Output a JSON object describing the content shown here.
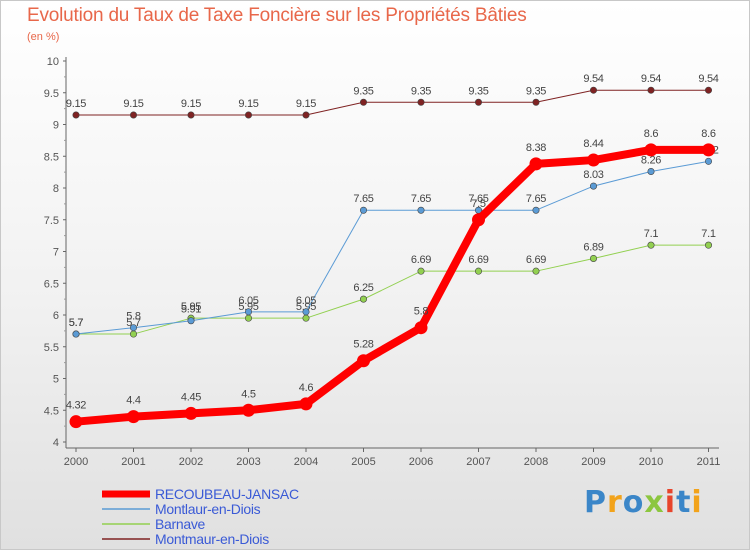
{
  "title": "Evolution du Taux de Taxe Foncière sur les Propriétés Bâties",
  "unit_label": "(en %)",
  "logo": {
    "text": "Proxiti",
    "letter_colors": [
      "#3b86c8",
      "#f2a31b",
      "#3b86c8",
      "#8cc63f",
      "#e8452c",
      "#3b86c8",
      "#f2a31b"
    ]
  },
  "chart_data": {
    "type": "line",
    "x": [
      "2000",
      "2001",
      "2002",
      "2003",
      "2004",
      "2005",
      "2006",
      "2007",
      "2008",
      "2009",
      "2010",
      "2011"
    ],
    "ylim": [
      4,
      10
    ],
    "yticks": [
      "4",
      "4.5",
      "5",
      "5.5",
      "6",
      "6.5",
      "7",
      "7.5",
      "8",
      "8.5",
      "9",
      "9.5",
      "10"
    ],
    "grid": false,
    "legend_position": "bottom-left",
    "series": [
      {
        "name": "Montmaur-en-Diois",
        "color": "#7f2323",
        "width": 1,
        "values": [
          9.15,
          9.15,
          9.15,
          9.15,
          9.15,
          9.35,
          9.35,
          9.35,
          9.35,
          9.54,
          9.54,
          9.54
        ],
        "labels": [
          "9.15",
          "9.15",
          "9.15",
          "9.15",
          "9.15",
          "9.35",
          "9.35",
          "9.35",
          "9.35",
          "9.54",
          "9.54",
          "9.54"
        ]
      },
      {
        "name": "Barnave",
        "color": "#92d050",
        "width": 1,
        "values": [
          5.7,
          5.7,
          5.95,
          5.95,
          5.95,
          6.25,
          6.69,
          6.69,
          6.69,
          6.89,
          7.1,
          7.1
        ],
        "labels": [
          "5.7",
          "5.7",
          "5.95",
          "5.95",
          "5.95",
          "6.25",
          "6.69",
          "6.69",
          "6.69",
          "6.89",
          "7.1",
          "7.1"
        ]
      },
      {
        "name": "Montlaur-en-Diois",
        "color": "#5b9bd5",
        "width": 1,
        "values": [
          5.7,
          5.8,
          5.91,
          6.05,
          6.05,
          7.65,
          7.65,
          7.65,
          7.65,
          8.03,
          8.26,
          8.42
        ],
        "labels": [
          "5.7",
          "5.8",
          "5.91",
          "6.05",
          "6.05",
          "7.65",
          "7.65",
          "7.65",
          "7.65",
          "8.03",
          "8.26",
          "8.42"
        ]
      },
      {
        "name": "RECOUBEAU-JANSAC",
        "color": "#ff0000",
        "width": 8,
        "values": [
          4.32,
          4.4,
          4.45,
          4.5,
          4.6,
          5.28,
          5.8,
          7.5,
          8.38,
          8.44,
          8.6,
          8.6
        ],
        "labels": [
          "4.32",
          "4.4",
          "4.45",
          "4.5",
          "4.6",
          "5.28",
          "5.8",
          "7.5",
          "8.38",
          "8.44",
          "8.6",
          "8.6"
        ]
      }
    ],
    "legend": [
      "RECOUBEAU-JANSAC",
      "Montlaur-en-Diois",
      "Barnave",
      "Montmaur-en-Diois"
    ]
  }
}
